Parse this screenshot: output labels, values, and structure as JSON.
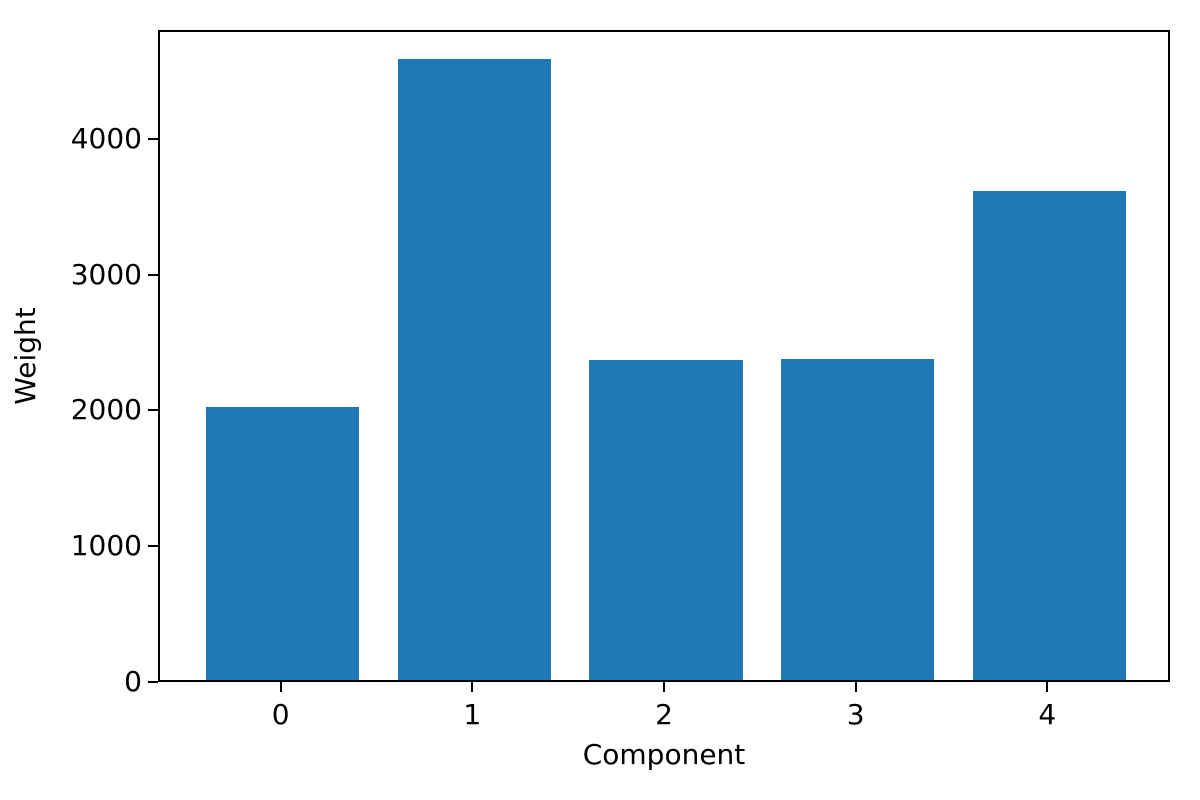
{
  "chart_data": {
    "type": "bar",
    "title": "",
    "xlabel": "Component",
    "ylabel": "Weight",
    "categories": [
      "0",
      "1",
      "2",
      "3",
      "4"
    ],
    "values": [
      2010,
      4575,
      2357,
      2364,
      3601
    ],
    "bar_color": "#1f77b4",
    "bar_width": 0.8,
    "xlim": [
      -0.64,
      4.64
    ],
    "ylim": [
      0,
      4800
    ],
    "xtick_values": [
      0,
      1,
      2,
      3,
      4
    ],
    "xtick_labels": [
      "0",
      "1",
      "2",
      "3",
      "4"
    ],
    "ytick_values": [
      0,
      1000,
      2000,
      3000,
      4000
    ],
    "ytick_labels": [
      "0",
      "1000",
      "2000",
      "3000",
      "4000"
    ],
    "grid": false,
    "legend_position": "none",
    "background_color": "#ffffff",
    "axis_color": "#000000"
  }
}
